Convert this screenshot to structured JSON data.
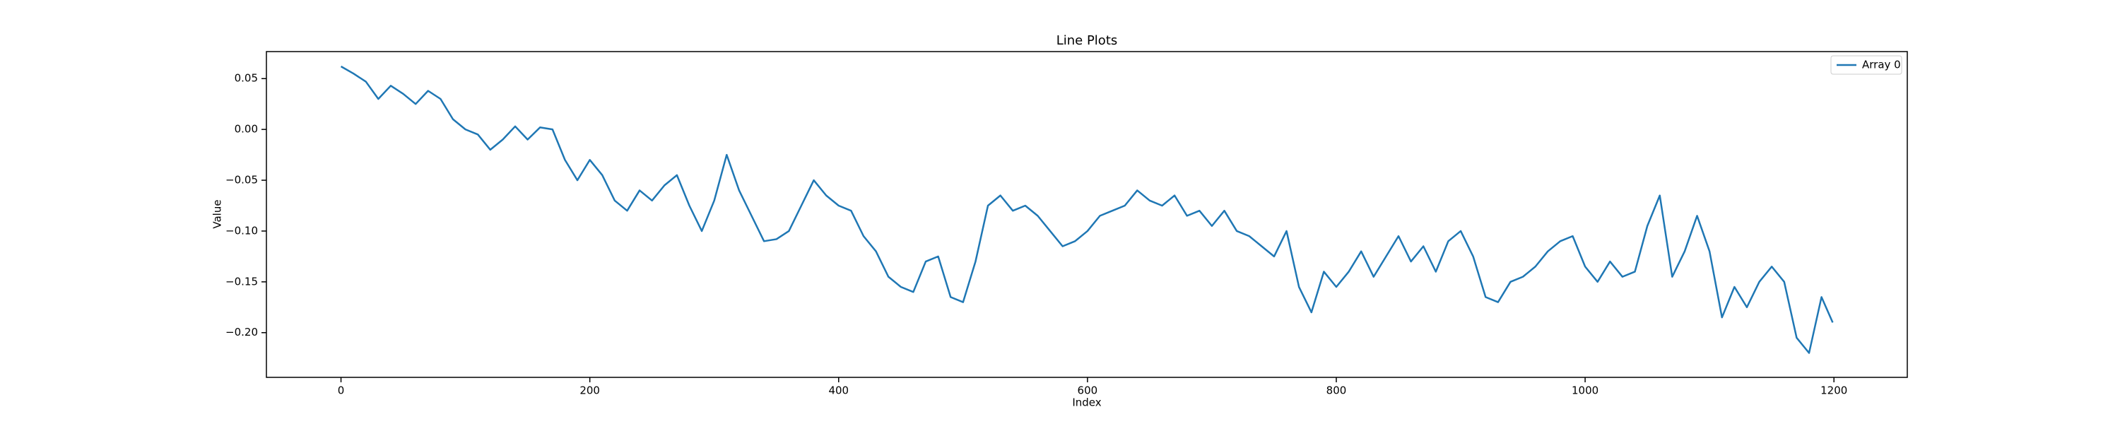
{
  "chart_data": {
    "type": "line",
    "title": "Line Plots",
    "x_label": "Index",
    "y_label": "Value",
    "x": [
      0,
      10,
      20,
      30,
      40,
      50,
      60,
      70,
      80,
      90,
      100,
      110,
      120,
      130,
      140,
      150,
      160,
      170,
      180,
      190,
      200,
      210,
      220,
      230,
      240,
      250,
      260,
      270,
      280,
      290,
      300,
      310,
      320,
      330,
      340,
      350,
      360,
      370,
      380,
      390,
      400,
      410,
      420,
      430,
      440,
      450,
      460,
      470,
      480,
      490,
      500,
      510,
      520,
      530,
      540,
      550,
      560,
      570,
      580,
      590,
      600,
      610,
      620,
      630,
      640,
      650,
      660,
      670,
      680,
      690,
      700,
      710,
      720,
      730,
      740,
      750,
      760,
      770,
      780,
      790,
      800,
      810,
      820,
      830,
      840,
      850,
      860,
      870,
      880,
      890,
      900,
      910,
      920,
      930,
      940,
      950,
      960,
      970,
      980,
      990,
      1000,
      1010,
      1020,
      1030,
      1040,
      1050,
      1060,
      1070,
      1080,
      1090,
      1100,
      1110,
      1120,
      1130,
      1140,
      1150,
      1160,
      1170,
      1180,
      1190,
      1199
    ],
    "series": [
      {
        "name": "Array 0",
        "color": "#1f77b4",
        "values": [
          0.062,
          0.055,
          0.047,
          0.03,
          0.043,
          0.035,
          0.025,
          0.038,
          0.03,
          0.01,
          0.0,
          -0.005,
          -0.02,
          -0.01,
          0.003,
          -0.01,
          0.002,
          0.0,
          -0.03,
          -0.05,
          -0.03,
          -0.045,
          -0.07,
          -0.08,
          -0.06,
          -0.07,
          -0.055,
          -0.045,
          -0.075,
          -0.1,
          -0.07,
          -0.025,
          -0.06,
          -0.085,
          -0.11,
          -0.108,
          -0.1,
          -0.075,
          -0.05,
          -0.065,
          -0.075,
          -0.08,
          -0.105,
          -0.12,
          -0.145,
          -0.155,
          -0.16,
          -0.13,
          -0.125,
          -0.165,
          -0.17,
          -0.13,
          -0.075,
          -0.065,
          -0.08,
          -0.075,
          -0.085,
          -0.1,
          -0.115,
          -0.11,
          -0.1,
          -0.085,
          -0.08,
          -0.075,
          -0.06,
          -0.07,
          -0.075,
          -0.065,
          -0.085,
          -0.08,
          -0.095,
          -0.08,
          -0.1,
          -0.105,
          -0.115,
          -0.125,
          -0.1,
          -0.155,
          -0.18,
          -0.14,
          -0.155,
          -0.14,
          -0.12,
          -0.145,
          -0.125,
          -0.105,
          -0.13,
          -0.115,
          -0.14,
          -0.11,
          -0.1,
          -0.125,
          -0.165,
          -0.17,
          -0.15,
          -0.145,
          -0.135,
          -0.12,
          -0.11,
          -0.105,
          -0.135,
          -0.15,
          -0.13,
          -0.145,
          -0.14,
          -0.095,
          -0.065,
          -0.145,
          -0.12,
          -0.085,
          -0.12,
          -0.185,
          -0.155,
          -0.175,
          -0.15,
          -0.135,
          -0.15,
          -0.205,
          -0.22,
          -0.165,
          -0.19
        ]
      }
    ],
    "xlim": [
      -59.95,
      1258.95
    ],
    "xticks": [
      0,
      200,
      400,
      600,
      800,
      1000,
      1200
    ],
    "ylim": [
      -0.244,
      0.0766
    ],
    "yticks": [
      {
        "value": -0.2,
        "label": "−0.20"
      },
      {
        "value": -0.15,
        "label": "−0.15"
      },
      {
        "value": -0.1,
        "label": "−0.10"
      },
      {
        "value": -0.05,
        "label": "−0.05"
      },
      {
        "value": 0,
        "label": "0.00"
      },
      0.05
    ],
    "legend": "upper right"
  }
}
